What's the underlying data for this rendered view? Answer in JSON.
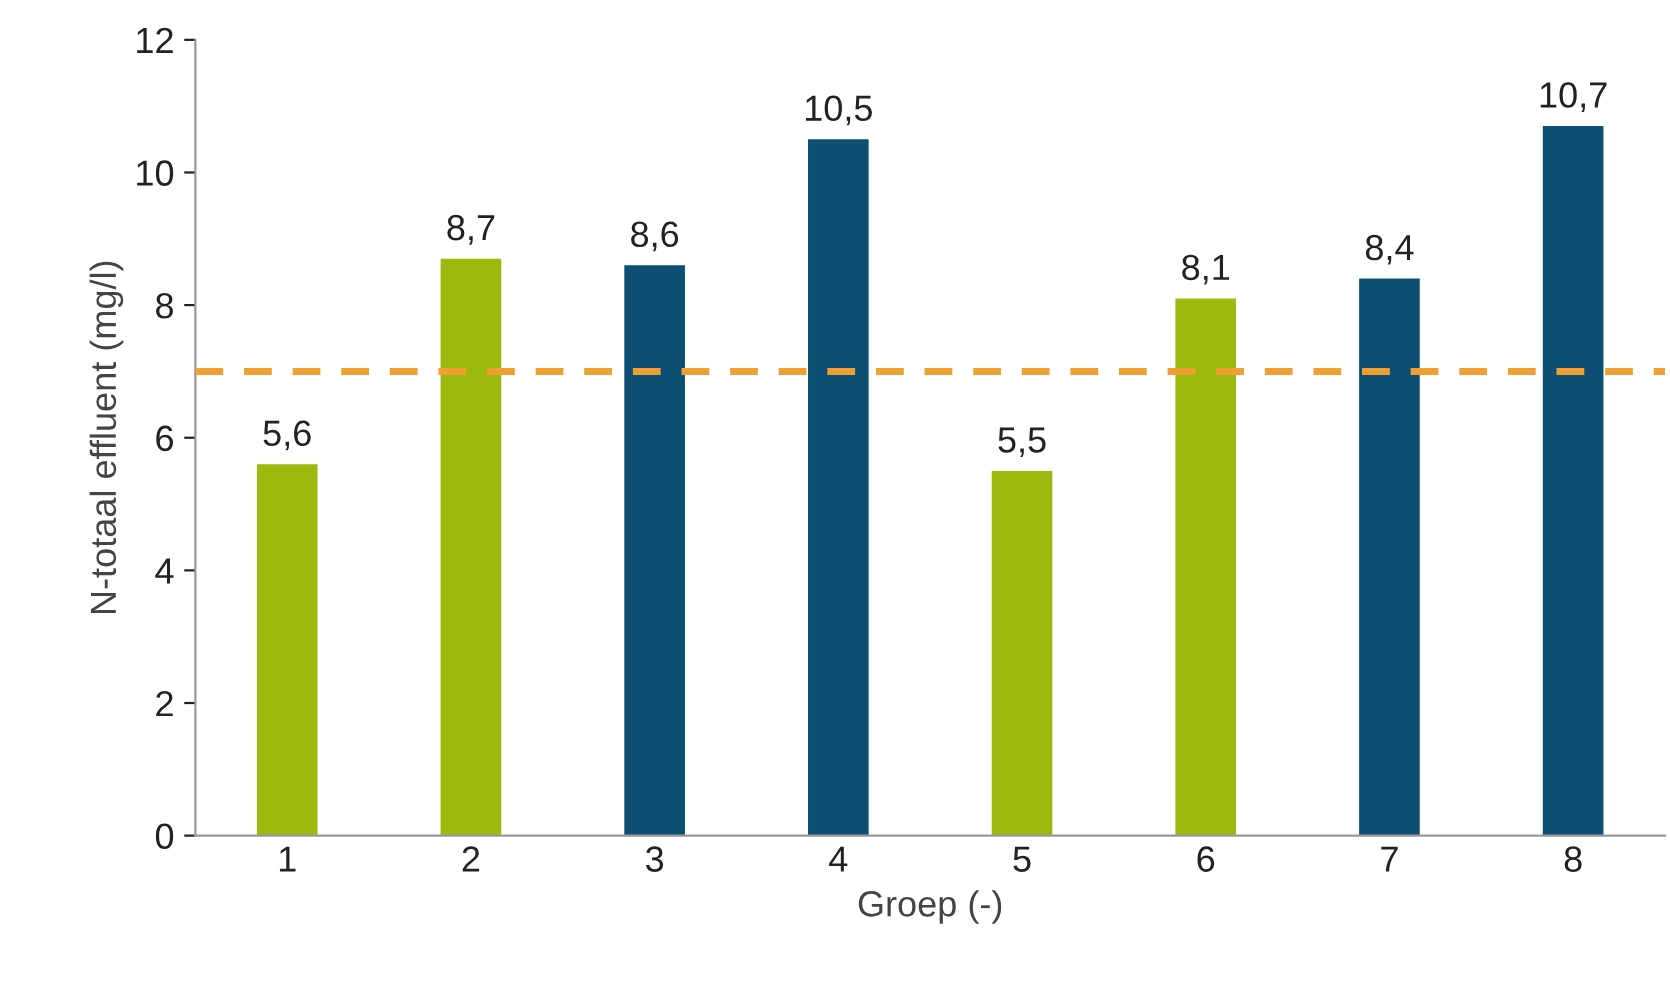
{
  "chart_data": {
    "type": "bar",
    "xlabel": "Groep (-)",
    "ylabel": "N-totaal effluent (mg/l)",
    "categories": [
      "1",
      "2",
      "3",
      "4",
      "5",
      "6",
      "7",
      "8"
    ],
    "values": [
      5.6,
      8.7,
      8.6,
      10.5,
      5.5,
      8.1,
      8.4,
      10.7
    ],
    "colors": [
      "#9cba0e",
      "#9cba0e",
      "#0c4f72",
      "#0c4f72",
      "#9cba0e",
      "#9cba0e",
      "#0c4f72",
      "#0c4f72"
    ],
    "value_labels": [
      "5,6",
      "8,7",
      "8,6",
      "10,5",
      "5,5",
      "8,1",
      "8,4",
      "10,7"
    ],
    "ylim": [
      0,
      12
    ],
    "yticks": [
      0,
      2,
      4,
      6,
      8,
      10,
      12
    ],
    "ref_lines": [
      {
        "axis": "y",
        "value": 7,
        "color": "#f0a030",
        "line_style": "dashed"
      }
    ],
    "grid": false,
    "legend": false
  }
}
